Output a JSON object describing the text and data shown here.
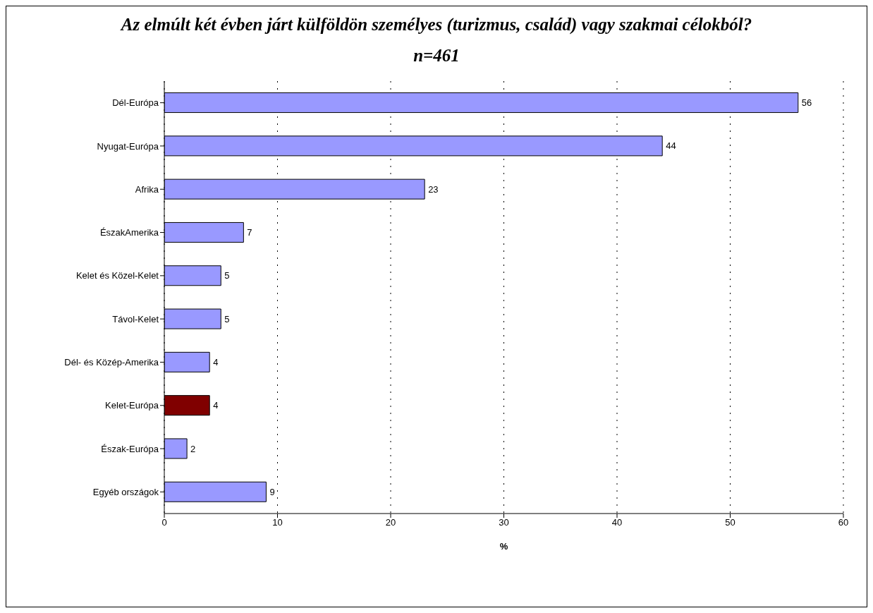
{
  "chart_data": {
    "type": "bar",
    "orientation": "horizontal",
    "title": "Az elmúlt két évben járt külföldön személyes (turizmus, család) vagy szakmai célokból?",
    "subtitle": "n=461",
    "xlabel": "%",
    "categories": [
      "Dél-Európa",
      "Nyugat-Európa",
      "Afrika",
      "ÉszakAmerika",
      "Kelet és Közel-Kelet",
      "Távol-Kelet",
      "Dél- és Közép-Amerika",
      "Kelet-Európa",
      "Észak-Európa",
      "Egyéb országok"
    ],
    "values": [
      56,
      44,
      23,
      7,
      5,
      5,
      4,
      4,
      2,
      9
    ],
    "colors": [
      "#9999ff",
      "#9999ff",
      "#9999ff",
      "#9999ff",
      "#9999ff",
      "#9999ff",
      "#9999ff",
      "#800000",
      "#9999ff",
      "#9999ff"
    ],
    "xlim": [
      0,
      60
    ],
    "xticks": [
      0,
      10,
      20,
      30,
      40,
      50,
      60
    ],
    "grid": "x",
    "data_labels": true
  }
}
